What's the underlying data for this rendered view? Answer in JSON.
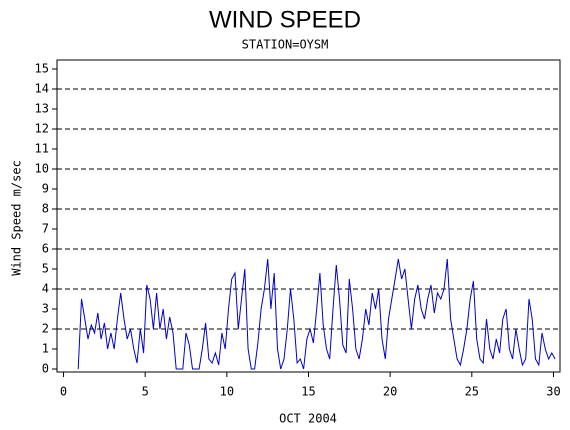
{
  "chart_data": {
    "type": "line",
    "title": "WIND SPEED",
    "subtitle": "STATION=OYSM",
    "x_label": "OCT 2004",
    "y_label": "Wind Speed m/sec",
    "xlim": [
      -0.4,
      30.4
    ],
    "xticks": [
      0,
      5,
      10,
      15,
      20,
      25,
      30
    ],
    "ylim": [
      -0.15,
      15.45
    ],
    "yticks": [
      0,
      1,
      2,
      3,
      4,
      5,
      6,
      7,
      8,
      9,
      10,
      11,
      12,
      13,
      14,
      15
    ],
    "reference_lines": [
      2,
      4,
      6,
      8,
      10,
      12,
      14
    ],
    "series": [
      {
        "color": "#0000cc",
        "x": [
          0.9,
          1.1,
          1.3,
          1.5,
          1.7,
          1.9,
          2.1,
          2.3,
          2.5,
          2.7,
          2.9,
          3.1,
          3.3,
          3.5,
          3.7,
          3.9,
          4.1,
          4.3,
          4.5,
          4.7,
          4.9,
          5.1,
          5.3,
          5.5,
          5.7,
          5.9,
          6.1,
          6.3,
          6.5,
          6.7,
          6.9,
          7.1,
          7.3,
          7.5,
          7.7,
          7.9,
          8.1,
          8.3,
          8.5,
          8.7,
          8.9,
          9.1,
          9.3,
          9.5,
          9.7,
          9.9,
          10.1,
          10.3,
          10.5,
          10.7,
          10.9,
          11.1,
          11.3,
          11.5,
          11.7,
          11.9,
          12.1,
          12.3,
          12.5,
          12.7,
          12.9,
          13.1,
          13.3,
          13.5,
          13.7,
          13.9,
          14.1,
          14.3,
          14.5,
          14.7,
          14.9,
          15.1,
          15.3,
          15.5,
          15.7,
          15.9,
          16.1,
          16.3,
          16.5,
          16.7,
          16.9,
          17.1,
          17.3,
          17.5,
          17.7,
          17.9,
          18.1,
          18.3,
          18.5,
          18.7,
          18.9,
          19.1,
          19.3,
          19.5,
          19.7,
          19.9,
          20.1,
          20.3,
          20.5,
          20.7,
          20.9,
          21.1,
          21.3,
          21.5,
          21.7,
          21.9,
          22.1,
          22.3,
          22.5,
          22.7,
          22.9,
          23.1,
          23.3,
          23.5,
          23.7,
          23.9,
          24.1,
          24.3,
          24.5,
          24.7,
          24.9,
          25.1,
          25.3,
          25.5,
          25.7,
          25.9,
          26.1,
          26.3,
          26.5,
          26.7,
          26.9,
          27.1,
          27.3,
          27.5,
          27.7,
          27.9,
          28.1,
          28.3,
          28.5,
          28.7,
          28.9,
          29.1,
          29.3,
          29.5,
          29.7,
          29.9,
          30.1
        ],
        "values": [
          0,
          3.5,
          2.5,
          1.5,
          2.2,
          1.8,
          2.8,
          1.5,
          2.3,
          1.0,
          1.8,
          1.0,
          2.5,
          3.8,
          2.5,
          1.5,
          2.0,
          1.0,
          0.3,
          2.0,
          0.8,
          4.2,
          3.5,
          2.0,
          3.8,
          2.0,
          3.0,
          1.5,
          2.6,
          1.8,
          0,
          0,
          0,
          1.8,
          1.2,
          0,
          0,
          0,
          1.0,
          2.3,
          0.5,
          0.3,
          0.8,
          0.2,
          1.8,
          1.0,
          3.0,
          4.5,
          4.8,
          2.0,
          3.5,
          5.0,
          1.0,
          0,
          0,
          1.3,
          3.0,
          4.0,
          5.5,
          3.0,
          4.8,
          1.0,
          0,
          0.5,
          2.0,
          4.0,
          2.5,
          0.3,
          0.5,
          0,
          1.5,
          2.0,
          1.3,
          3.0,
          4.8,
          2.2,
          1.0,
          0.5,
          3.0,
          5.2,
          3.5,
          1.2,
          0.8,
          4.5,
          3.0,
          1.0,
          0.5,
          1.5,
          3.0,
          2.2,
          3.8,
          3.0,
          4.0,
          1.5,
          0.5,
          2.5,
          3.5,
          4.5,
          5.5,
          4.5,
          5.0,
          3.5,
          2.0,
          3.5,
          4.2,
          3.0,
          2.5,
          3.5,
          4.2,
          2.8,
          3.8,
          3.5,
          4.0,
          5.5,
          2.5,
          1.5,
          0.5,
          0.2,
          1.0,
          2.0,
          3.5,
          4.4,
          1.5,
          0.5,
          0.3,
          2.5,
          1.0,
          0.5,
          1.5,
          0.8,
          2.5,
          3.0,
          1.0,
          0.5,
          2.0,
          1.0,
          0.2,
          0.5,
          3.5,
          2.5,
          0.5,
          0.2,
          1.8,
          1.0,
          0.5,
          0.8,
          0.5
        ]
      }
    ]
  }
}
